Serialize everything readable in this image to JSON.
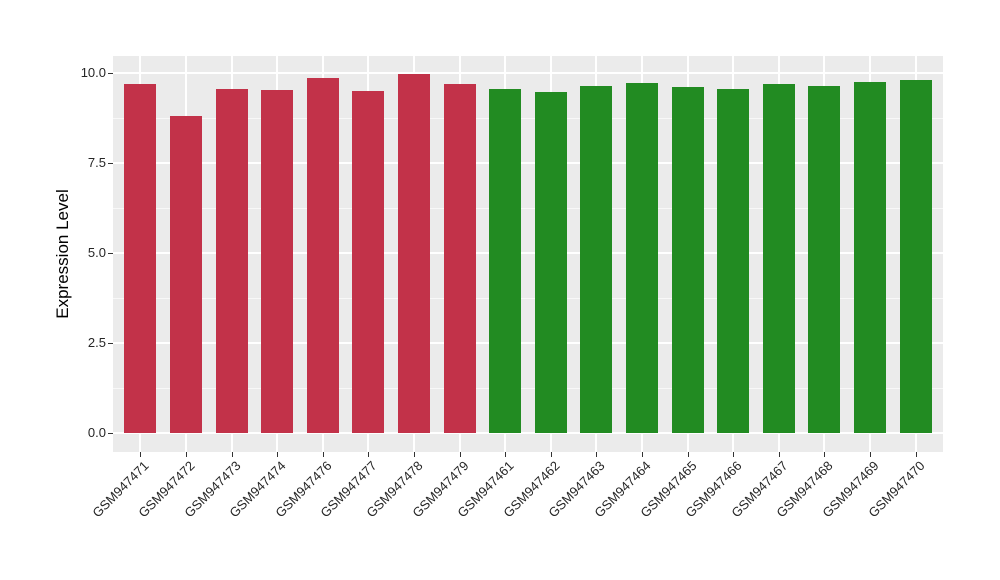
{
  "page": {
    "background": "#FFFFFF"
  },
  "chart_data": {
    "type": "bar",
    "title": "",
    "xlabel": "",
    "ylabel": "Expression Level",
    "categories": [
      "GSM947471",
      "GSM947472",
      "GSM947473",
      "GSM947474",
      "GSM947476",
      "GSM947477",
      "GSM947478",
      "GSM947479",
      "GSM947461",
      "GSM947462",
      "GSM947463",
      "GSM947464",
      "GSM947465",
      "GSM947466",
      "GSM947467",
      "GSM947468",
      "GSM947469",
      "GSM947470"
    ],
    "values": [
      9.69,
      8.81,
      9.56,
      9.53,
      9.85,
      9.5,
      9.96,
      9.69,
      9.56,
      9.48,
      9.64,
      9.71,
      9.62,
      9.56,
      9.69,
      9.64,
      9.76,
      9.81
    ],
    "bar_colors": [
      "#C23249",
      "#C23249",
      "#C23249",
      "#C23249",
      "#C23249",
      "#C23249",
      "#C23249",
      "#C23249",
      "#228B22",
      "#228B22",
      "#228B22",
      "#228B22",
      "#228B22",
      "#228B22",
      "#228B22",
      "#228B22",
      "#228B22",
      "#228B22"
    ],
    "groups": [
      {
        "name": "GSM947471-GSM947479",
        "color": "#C23249",
        "count": 8
      },
      {
        "name": "GSM947461-GSM947470",
        "color": "#228B22",
        "count": 10
      }
    ],
    "ytick_labels": [
      "0.0",
      "2.5",
      "5.0",
      "7.5",
      "10.0"
    ],
    "ytick_values": [
      0,
      2.5,
      5,
      7.5,
      10
    ],
    "minor_ytick_values": [
      1.25,
      3.75,
      6.25,
      8.75
    ],
    "ylim": [
      -0.52,
      10.47
    ],
    "x_expand": 0.6,
    "bar_width_frac": 0.7,
    "legend": "none",
    "grid": "on",
    "panel_bg": "#EBEBEB",
    "grid_major_color": "#FFFFFF",
    "grid_minor_color": "#FFFFFF",
    "tick_color": "#333333",
    "label_color": "#262626"
  }
}
